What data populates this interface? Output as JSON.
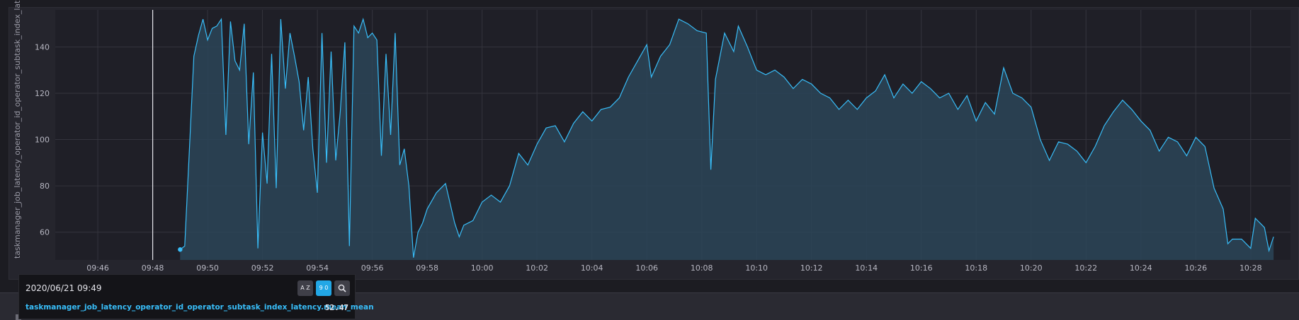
{
  "chart_data": {
    "type": "area",
    "title": "",
    "xlabel": "",
    "ylabel": "taskmanager_job_latency_operator_id_operator_subtask_index_latency.m...",
    "x_range": [
      "09:45",
      "10:29"
    ],
    "ylim": [
      48,
      156
    ],
    "y_ticks": [
      60,
      80,
      100,
      120,
      140
    ],
    "x_ticks": [
      "09:46",
      "09:48",
      "09:50",
      "09:52",
      "09:54",
      "09:56",
      "09:58",
      "10:00",
      "10:02",
      "10:04",
      "10:06",
      "10:08",
      "10:10",
      "10:12",
      "10:14",
      "10:16",
      "10:18",
      "10:20",
      "10:22",
      "10:24",
      "10:26",
      "10:28"
    ],
    "grid": true,
    "series_color": "#38bdf8",
    "fill_color": "#2b4558",
    "cursor_time": "09:48",
    "series": [
      {
        "name": "taskmanager_job_latency_operator_id_operator_subtask_index_latency.mean_mean",
        "points": [
          [
            "09:49",
            52.5
          ],
          [
            "09:49:10",
            54
          ],
          [
            "09:49:20",
            95
          ],
          [
            "09:49:30",
            136
          ],
          [
            "09:49:40",
            145
          ],
          [
            "09:49:50",
            152
          ],
          [
            "09:50:00",
            143
          ],
          [
            "09:50:10",
            148
          ],
          [
            "09:50:20",
            149
          ],
          [
            "09:50:30",
            152
          ],
          [
            "09:50:40",
            102
          ],
          [
            "09:50:50",
            151
          ],
          [
            "09:51:00",
            134
          ],
          [
            "09:51:10",
            130
          ],
          [
            "09:51:20",
            150
          ],
          [
            "09:51:30",
            98
          ],
          [
            "09:51:40",
            129
          ],
          [
            "09:51:50",
            53
          ],
          [
            "09:52:00",
            103
          ],
          [
            "09:52:10",
            81
          ],
          [
            "09:52:20",
            137
          ],
          [
            "09:52:30",
            79
          ],
          [
            "09:52:40",
            152
          ],
          [
            "09:52:50",
            122
          ],
          [
            "09:53:00",
            146
          ],
          [
            "09:53:10",
            136
          ],
          [
            "09:53:20",
            125
          ],
          [
            "09:53:30",
            104
          ],
          [
            "09:53:40",
            127
          ],
          [
            "09:53:50",
            96
          ],
          [
            "09:54:00",
            77
          ],
          [
            "09:54:10",
            146
          ],
          [
            "09:54:20",
            90
          ],
          [
            "09:54:30",
            138
          ],
          [
            "09:54:40",
            91
          ],
          [
            "09:54:50",
            112
          ],
          [
            "09:55:00",
            142
          ],
          [
            "09:55:10",
            54
          ],
          [
            "09:55:20",
            149
          ],
          [
            "09:55:30",
            146
          ],
          [
            "09:55:40",
            152
          ],
          [
            "09:55:50",
            144
          ],
          [
            "09:56:00",
            146
          ],
          [
            "09:56:10",
            143
          ],
          [
            "09:56:20",
            93
          ],
          [
            "09:56:30",
            137
          ],
          [
            "09:56:40",
            102
          ],
          [
            "09:56:50",
            146
          ],
          [
            "09:57:00",
            89
          ],
          [
            "09:57:10",
            96
          ],
          [
            "09:57:20",
            80
          ],
          [
            "09:57:30",
            49
          ],
          [
            "09:57:40",
            60
          ],
          [
            "09:57:50",
            64
          ],
          [
            "09:58:00",
            70
          ],
          [
            "09:58:20",
            77
          ],
          [
            "09:58:40",
            81
          ],
          [
            "09:59:00",
            64
          ],
          [
            "09:59:10",
            58
          ],
          [
            "09:59:20",
            63
          ],
          [
            "09:59:40",
            65
          ],
          [
            "10:00:00",
            73
          ],
          [
            "10:00:20",
            76
          ],
          [
            "10:00:40",
            73
          ],
          [
            "10:01:00",
            80
          ],
          [
            "10:01:20",
            94
          ],
          [
            "10:01:40",
            89
          ],
          [
            "10:02:00",
            98
          ],
          [
            "10:02:20",
            105
          ],
          [
            "10:02:40",
            106
          ],
          [
            "10:03:00",
            99
          ],
          [
            "10:03:20",
            107
          ],
          [
            "10:03:40",
            112
          ],
          [
            "10:04:00",
            108
          ],
          [
            "10:04:20",
            113
          ],
          [
            "10:04:40",
            114
          ],
          [
            "10:05:00",
            118
          ],
          [
            "10:05:20",
            127
          ],
          [
            "10:05:40",
            134
          ],
          [
            "10:06:00",
            141
          ],
          [
            "10:06:10",
            127
          ],
          [
            "10:06:30",
            136
          ],
          [
            "10:06:50",
            141
          ],
          [
            "10:07:10",
            152
          ],
          [
            "10:07:30",
            150
          ],
          [
            "10:07:50",
            147
          ],
          [
            "10:08:10",
            146
          ],
          [
            "10:08:20",
            87
          ],
          [
            "10:08:30",
            126
          ],
          [
            "10:08:50",
            146
          ],
          [
            "10:09:10",
            138
          ],
          [
            "10:09:20",
            149
          ],
          [
            "10:09:40",
            140
          ],
          [
            "10:10:00",
            130
          ],
          [
            "10:10:20",
            128
          ],
          [
            "10:10:40",
            130
          ],
          [
            "10:11:00",
            127
          ],
          [
            "10:11:20",
            122
          ],
          [
            "10:11:40",
            126
          ],
          [
            "10:12:00",
            124
          ],
          [
            "10:12:20",
            120
          ],
          [
            "10:12:40",
            118
          ],
          [
            "10:13:00",
            113
          ],
          [
            "10:13:20",
            117
          ],
          [
            "10:13:40",
            113
          ],
          [
            "10:14:00",
            118
          ],
          [
            "10:14:20",
            121
          ],
          [
            "10:14:40",
            128
          ],
          [
            "10:15:00",
            118
          ],
          [
            "10:15:20",
            124
          ],
          [
            "10:15:40",
            120
          ],
          [
            "10:16:00",
            125
          ],
          [
            "10:16:20",
            122
          ],
          [
            "10:16:40",
            118
          ],
          [
            "10:17:00",
            120
          ],
          [
            "10:17:20",
            113
          ],
          [
            "10:17:40",
            119
          ],
          [
            "10:18:00",
            108
          ],
          [
            "10:18:20",
            116
          ],
          [
            "10:18:40",
            111
          ],
          [
            "10:19:00",
            131
          ],
          [
            "10:19:20",
            120
          ],
          [
            "10:19:40",
            118
          ],
          [
            "10:20:00",
            114
          ],
          [
            "10:20:20",
            100
          ],
          [
            "10:20:40",
            91
          ],
          [
            "10:21:00",
            99
          ],
          [
            "10:21:20",
            98
          ],
          [
            "10:21:40",
            95
          ],
          [
            "10:22:00",
            90
          ],
          [
            "10:22:20",
            97
          ],
          [
            "10:22:40",
            106
          ],
          [
            "10:23:00",
            112
          ],
          [
            "10:23:20",
            117
          ],
          [
            "10:23:40",
            113
          ],
          [
            "10:24:00",
            108
          ],
          [
            "10:24:20",
            104
          ],
          [
            "10:24:40",
            95
          ],
          [
            "10:25:00",
            101
          ],
          [
            "10:25:20",
            99
          ],
          [
            "10:25:40",
            93
          ],
          [
            "10:26:00",
            101
          ],
          [
            "10:26:20",
            97
          ],
          [
            "10:26:40",
            79
          ],
          [
            "10:27:00",
            70
          ],
          [
            "10:27:10",
            55
          ],
          [
            "10:27:20",
            57
          ],
          [
            "10:27:40",
            57
          ],
          [
            "10:28:00",
            53
          ],
          [
            "10:28:10",
            66
          ],
          [
            "10:28:30",
            62
          ],
          [
            "10:28:40",
            52
          ],
          [
            "10:28:50",
            58
          ]
        ]
      }
    ]
  },
  "tooltip": {
    "time": "2020/06/21 09:49",
    "sort_az_label": "A Z",
    "sort_num_label": "9 0",
    "series_name": "taskmanager_job_latency_operator_id_operator_subtask_index_latency.mean_mean",
    "series_value": "52.47"
  }
}
